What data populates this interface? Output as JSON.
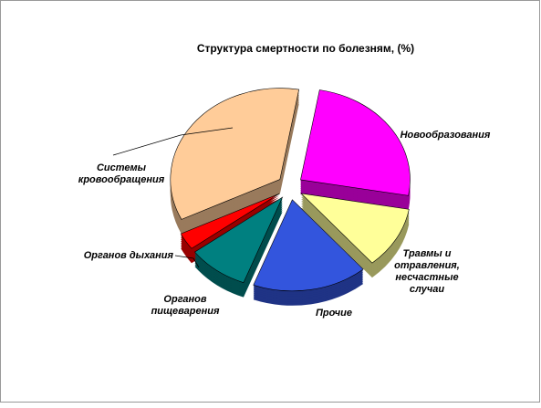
{
  "chart_data": {
    "type": "pie",
    "title": "Структура смертности по болезням, (%)",
    "categories": [
      [
        "Новообразования"
      ],
      [
        "Травмы и",
        "отравления,",
        "несчастные",
        "случаи"
      ],
      [
        "Прочие"
      ],
      [
        "Органов",
        "пищеварения"
      ],
      [
        "Органов дыхания"
      ],
      [
        "Системы",
        "кровообращения"
      ]
    ],
    "values": [
      25,
      11,
      17,
      9,
      3,
      35
    ],
    "colors": [
      "#ff00ff",
      "#ffff99",
      "#3355dd",
      "#008080",
      "#ff0000",
      "#ffcc99"
    ]
  }
}
